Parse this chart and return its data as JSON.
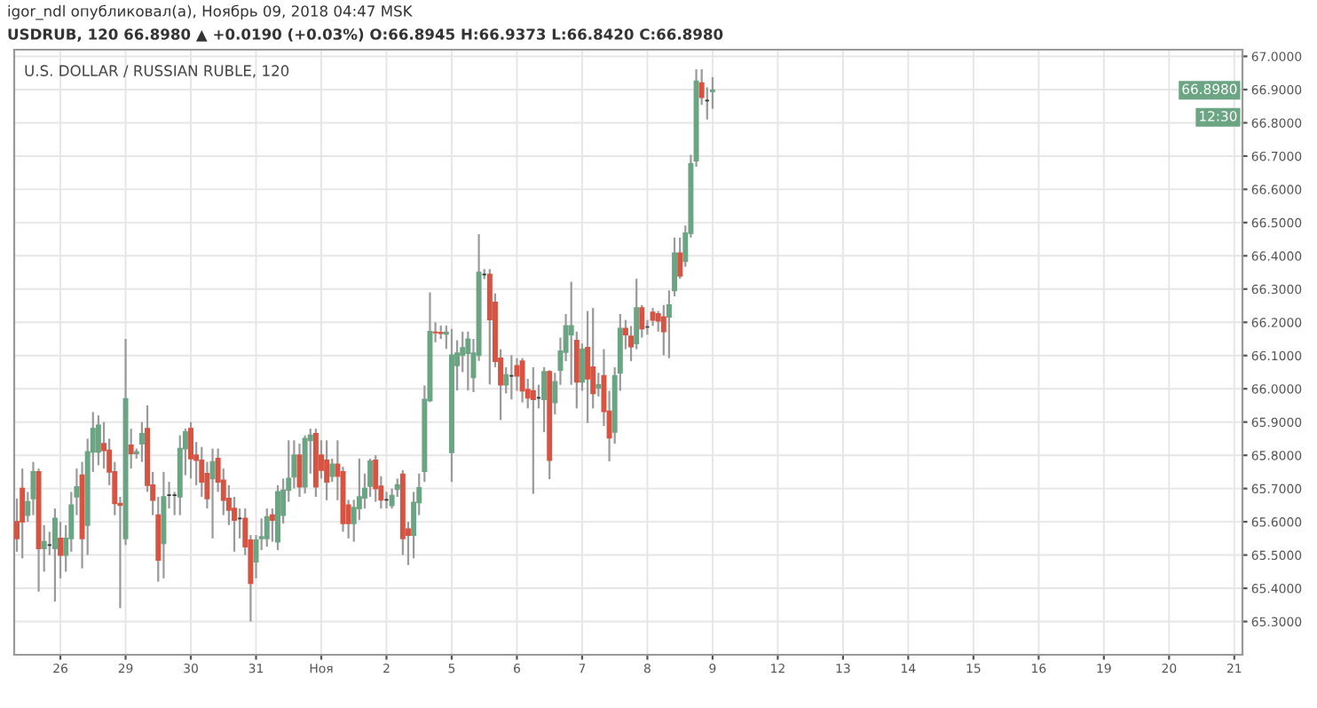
{
  "chart_data": {
    "type": "candlestick",
    "title": "U.S. DOLLAR / RUSSIAN RUBLE, 120",
    "annotations": [
      "igor_ndl опубликовал(а), Ноябрь 09, 2018 04:47 MSK",
      "USDRUB, 120 66.8980 ▲ +0.0190 (+0.03%) O:66.8945 H:66.9373 L:66.8420 C:66.8980",
      {
        "text": "66.8980",
        "y": 66.898
      },
      "12:30"
    ],
    "categories": [
      null,
      null,
      null,
      null,
      null,
      null,
      null,
      null,
      "26",
      null,
      null,
      null,
      null,
      null,
      null,
      null,
      null,
      null,
      null,
      null,
      "29",
      null,
      null,
      null,
      null,
      null,
      null,
      null,
      null,
      null,
      null,
      null,
      "30",
      null,
      null,
      null,
      null,
      null,
      null,
      null,
      null,
      null,
      null,
      null,
      "31",
      null,
      null,
      null,
      null,
      null,
      null,
      null,
      null,
      null,
      null,
      null,
      "Ноя",
      null,
      null,
      null,
      null,
      null,
      null,
      null,
      null,
      null,
      null,
      null,
      "2",
      null,
      null,
      null,
      null,
      null,
      null,
      null,
      null,
      null,
      null,
      null,
      "5",
      null,
      null,
      null,
      null,
      null,
      null,
      null,
      null,
      null,
      null,
      null,
      "6",
      null,
      null,
      null,
      null,
      null,
      null,
      null,
      null,
      null,
      null,
      null,
      "7",
      null,
      null,
      null,
      null,
      null,
      null,
      null,
      null,
      null,
      null,
      null,
      "8",
      null,
      null,
      null,
      null,
      null,
      null,
      null,
      null,
      null,
      null,
      null,
      "9",
      null,
      null,
      null,
      null,
      null,
      null,
      null,
      null,
      null,
      null,
      null,
      "12",
      null,
      null,
      null,
      null,
      null,
      null,
      null,
      null,
      null,
      null,
      null,
      "13",
      null,
      null,
      null,
      null,
      null,
      null,
      null,
      null,
      null,
      null,
      null,
      "14",
      null,
      null,
      null,
      null,
      null,
      null,
      null,
      null,
      null,
      null,
      null,
      "15",
      null,
      null,
      null,
      null,
      null,
      null,
      null,
      null,
      null,
      null,
      null,
      "16",
      null,
      null,
      null,
      null,
      null,
      null,
      null,
      null,
      null,
      null,
      null,
      "19",
      null,
      null,
      null,
      null,
      null,
      null,
      null,
      null,
      null,
      null,
      null,
      "20",
      null,
      null,
      null,
      null,
      null,
      null,
      null,
      null,
      null,
      null,
      null,
      "21",
      null
    ],
    "ohlc": [
      [
        65.6,
        65.67,
        65.51,
        65.55
      ],
      [
        65.7,
        65.76,
        65.49,
        65.6
      ],
      [
        65.62,
        65.69,
        65.6,
        65.66
      ],
      [
        65.67,
        65.78,
        65.62,
        65.75
      ],
      [
        65.75,
        65.76,
        65.39,
        65.52
      ],
      [
        65.52,
        65.59,
        65.45,
        65.54
      ],
      [
        65.53,
        65.57,
        65.5,
        65.53
      ],
      [
        65.52,
        65.64,
        65.36,
        65.61
      ],
      [
        65.55,
        65.6,
        65.43,
        65.5
      ],
      [
        65.5,
        65.59,
        65.45,
        65.55
      ],
      [
        65.55,
        65.69,
        65.51,
        65.65
      ],
      [
        65.675,
        65.76,
        65.62,
        65.705
      ],
      [
        65.74,
        65.78,
        65.46,
        65.55
      ],
      [
        65.59,
        65.85,
        65.5,
        65.81
      ],
      [
        65.81,
        65.93,
        65.75,
        65.88
      ],
      [
        65.81,
        65.92,
        65.77,
        65.89
      ],
      [
        65.835,
        65.9,
        65.76,
        65.815
      ],
      [
        65.815,
        65.85,
        65.71,
        65.75
      ],
      [
        65.75,
        65.78,
        65.62,
        65.655
      ],
      [
        65.655,
        65.675,
        65.34,
        65.65
      ],
      [
        65.55,
        66.15,
        65.53,
        65.97
      ],
      [
        65.83,
        65.88,
        65.76,
        65.805
      ],
      [
        65.805,
        65.82,
        65.79,
        65.81
      ],
      [
        65.835,
        65.9,
        65.78,
        65.865
      ],
      [
        65.88,
        65.95,
        65.69,
        65.71
      ],
      [
        65.71,
        65.75,
        65.62,
        65.665
      ],
      [
        65.62,
        65.675,
        65.42,
        65.485
      ],
      [
        65.535,
        65.75,
        65.43,
        65.675
      ],
      [
        65.68,
        65.72,
        65.64,
        65.68
      ],
      [
        65.68,
        65.69,
        65.62,
        65.68
      ],
      [
        65.675,
        65.86,
        65.62,
        65.82
      ],
      [
        65.82,
        65.88,
        65.74,
        65.87
      ],
      [
        65.88,
        65.9,
        65.73,
        65.79
      ],
      [
        65.8,
        65.84,
        65.71,
        65.785
      ],
      [
        65.785,
        65.825,
        65.675,
        65.72
      ],
      [
        65.745,
        65.78,
        65.64,
        65.67
      ],
      [
        65.73,
        65.82,
        65.55,
        65.78
      ],
      [
        65.79,
        65.82,
        65.69,
        65.72
      ],
      [
        65.725,
        65.76,
        65.62,
        65.665
      ],
      [
        65.67,
        65.71,
        65.59,
        65.635
      ],
      [
        65.64,
        65.675,
        65.51,
        65.605
      ],
      [
        65.61,
        65.64,
        65.55,
        65.61
      ],
      [
        65.61,
        65.64,
        65.5,
        65.525
      ],
      [
        65.545,
        65.56,
        65.3,
        65.415
      ],
      [
        65.48,
        65.56,
        65.43,
        65.545
      ],
      [
        65.55,
        65.61,
        65.515,
        65.555
      ],
      [
        65.55,
        65.64,
        65.525,
        65.615
      ],
      [
        65.62,
        65.64,
        65.54,
        65.605
      ],
      [
        65.54,
        65.71,
        65.515,
        65.69
      ],
      [
        65.62,
        65.73,
        65.595,
        65.695
      ],
      [
        65.695,
        65.845,
        65.66,
        65.73
      ],
      [
        65.735,
        65.845,
        65.7,
        65.8
      ],
      [
        65.8,
        65.835,
        65.675,
        65.705
      ],
      [
        65.705,
        65.86,
        65.685,
        65.85
      ],
      [
        65.845,
        65.88,
        65.745,
        65.86
      ],
      [
        65.865,
        65.88,
        65.675,
        65.705
      ],
      [
        65.8,
        65.845,
        65.73,
        65.755
      ],
      [
        65.785,
        65.845,
        65.665,
        65.72
      ],
      [
        65.737,
        65.79,
        65.72,
        65.773
      ],
      [
        65.773,
        65.845,
        65.665,
        65.737
      ],
      [
        65.75,
        65.765,
        65.57,
        65.595
      ],
      [
        65.65,
        65.666,
        65.55,
        65.595
      ],
      [
        65.595,
        65.666,
        65.54,
        65.643
      ],
      [
        65.64,
        65.79,
        65.605,
        65.675
      ],
      [
        65.672,
        65.745,
        65.64,
        65.7
      ],
      [
        65.707,
        65.79,
        65.675,
        65.782
      ],
      [
        65.785,
        65.8,
        65.66,
        65.7
      ],
      [
        65.707,
        65.737,
        65.64,
        65.666
      ],
      [
        65.666,
        65.69,
        65.64,
        65.666
      ],
      [
        65.649,
        65.7,
        65.64,
        65.679
      ],
      [
        65.698,
        65.73,
        65.675,
        65.711
      ],
      [
        65.743,
        65.755,
        65.5,
        65.55
      ],
      [
        65.578,
        65.6,
        65.47,
        65.56
      ],
      [
        65.56,
        65.69,
        65.49,
        65.658
      ],
      [
        65.658,
        65.745,
        65.62,
        65.702
      ],
      [
        65.752,
        66.01,
        65.72,
        65.968
      ],
      [
        65.965,
        66.29,
        65.96,
        66.172
      ],
      [
        66.17,
        66.2,
        66.14,
        66.169
      ],
      [
        66.169,
        66.19,
        66.15,
        66.167
      ],
      [
        66.165,
        66.19,
        66.12,
        66.17
      ],
      [
        65.809,
        66.18,
        65.72,
        66.101
      ],
      [
        66.07,
        66.146,
        65.995,
        66.107
      ],
      [
        66.101,
        66.172,
        66.05,
        66.123
      ],
      [
        66.107,
        66.172,
        65.995,
        66.149
      ],
      [
        66.034,
        66.15,
        65.99,
        66.107
      ],
      [
        66.101,
        66.465,
        66.084,
        66.35
      ],
      [
        66.344,
        66.36,
        66.33,
        66.344
      ],
      [
        66.344,
        66.36,
        66.013,
        66.208
      ],
      [
        66.26,
        66.287,
        66.065,
        66.083
      ],
      [
        66.092,
        66.119,
        65.906,
        66.012
      ],
      [
        66.012,
        66.065,
        65.986,
        66.042
      ],
      [
        66.039,
        66.101,
        65.968,
        66.039
      ],
      [
        66.069,
        66.092,
        65.994,
        66.039
      ],
      [
        66.083,
        66.092,
        65.959,
        65.994
      ],
      [
        65.998,
        66.03,
        65.941,
        65.973
      ],
      [
        65.994,
        66.065,
        65.684,
        65.968
      ],
      [
        65.973,
        66.012,
        65.941,
        65.973
      ],
      [
        65.968,
        66.065,
        65.87,
        66.051
      ],
      [
        66.051,
        66.056,
        65.728,
        65.785
      ],
      [
        65.959,
        66.048,
        65.923,
        66.021
      ],
      [
        66.056,
        66.154,
        66.012,
        66.113
      ],
      [
        66.11,
        66.225,
        66.083,
        66.189
      ],
      [
        66.163,
        66.322,
        66.012,
        66.189
      ],
      [
        66.145,
        66.172,
        65.941,
        66.021
      ],
      [
        66.021,
        66.136,
        65.994,
        66.119
      ],
      [
        66.124,
        66.234,
        65.897,
        66.03
      ],
      [
        66.065,
        66.243,
        65.941,
        65.986
      ],
      [
        66.003,
        66.048,
        65.977,
        66.012
      ],
      [
        66.039,
        66.119,
        65.888,
        65.932
      ],
      [
        65.932,
        65.994,
        65.782,
        65.853
      ],
      [
        65.87,
        66.065,
        65.835,
        66.039
      ],
      [
        66.048,
        66.225,
        65.994,
        66.181
      ],
      [
        66.181,
        66.207,
        66.119,
        66.163
      ],
      [
        66.158,
        66.189,
        66.083,
        66.127
      ],
      [
        66.136,
        66.331,
        66.119,
        66.243
      ],
      [
        66.243,
        66.252,
        66.154,
        66.181
      ],
      [
        66.186,
        66.207,
        66.163,
        66.186
      ],
      [
        66.23,
        66.243,
        66.189,
        66.207
      ],
      [
        66.225,
        66.234,
        66.172,
        66.204
      ],
      [
        66.216,
        66.252,
        66.101,
        66.172
      ],
      [
        66.216,
        66.296,
        66.092,
        66.252
      ],
      [
        66.296,
        66.455,
        66.278,
        66.408
      ],
      [
        66.408,
        66.455,
        66.331,
        66.34
      ],
      [
        66.384,
        66.491,
        66.367,
        66.468
      ],
      [
        66.468,
        66.704,
        66.455,
        66.677
      ],
      [
        66.686,
        66.961,
        66.668,
        66.925
      ],
      [
        66.92,
        66.961,
        66.854,
        66.877
      ],
      [
        66.867,
        66.907,
        66.81,
        66.867
      ],
      [
        66.8945,
        66.9373,
        66.842,
        66.898
      ],
      null,
      null,
      null,
      null,
      null,
      null,
      null,
      null,
      null,
      null,
      null,
      null,
      null,
      null,
      null,
      null,
      null,
      null,
      null,
      null,
      null,
      null,
      null,
      null,
      null,
      null,
      null,
      null,
      null,
      null,
      null,
      null,
      null,
      null,
      null,
      null,
      null,
      null,
      null,
      null,
      null,
      null,
      null,
      null,
      null,
      null,
      null,
      null,
      null,
      null,
      null,
      null,
      null,
      null,
      null,
      null,
      null,
      null,
      null,
      null,
      null,
      null,
      null,
      null,
      null,
      null,
      null,
      null,
      null,
      null,
      null,
      null,
      null,
      null,
      null,
      null,
      null,
      null,
      null,
      null,
      null,
      null,
      null,
      null,
      null,
      null,
      null,
      null,
      null,
      null,
      null,
      null,
      null,
      null,
      null,
      null,
      null
    ],
    "ylim": [
      65.2,
      67.02
    ],
    "yticks": [
      {
        "value": 65.3,
        "label": "65.3000"
      },
      {
        "value": 65.4,
        "label": "65.4000"
      },
      {
        "value": 65.5,
        "label": "65.5000"
      },
      {
        "value": 65.6,
        "label": "65.6000"
      },
      {
        "value": 65.7,
        "label": "65.7000"
      },
      {
        "value": 65.8,
        "label": "65.8000"
      },
      {
        "value": 65.9,
        "label": "65.9000"
      },
      {
        "value": 66.0,
        "label": "66.0000"
      },
      {
        "value": 66.1,
        "label": "66.1000"
      },
      {
        "value": 66.2,
        "label": "66.2000"
      },
      {
        "value": 66.3,
        "label": "66.3000"
      },
      {
        "value": 66.4,
        "label": "66.4000"
      },
      {
        "value": 66.5,
        "label": "66.5000"
      },
      {
        "value": 66.6,
        "label": "66.6000"
      },
      {
        "value": 66.7,
        "label": "66.7000"
      },
      {
        "value": 66.8,
        "label": "66.8000"
      },
      {
        "value": 66.9,
        "label": "66.9000"
      },
      {
        "value": 67.0,
        "label": "67.0000"
      }
    ],
    "grid": true
  }
}
